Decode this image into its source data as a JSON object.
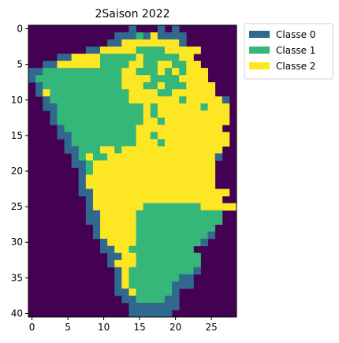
{
  "chart_data": {
    "type": "heatmap",
    "title": "2Saison 2022",
    "xlabel": "",
    "ylabel": "",
    "xlim": [
      -0.5,
      28.5
    ],
    "ylim": [
      40.5,
      -0.5
    ],
    "x_ticks": [
      0,
      5,
      10,
      15,
      20,
      25
    ],
    "y_ticks": [
      0,
      5,
      10,
      15,
      20,
      25,
      30,
      35,
      40
    ],
    "x_tick_labels": [
      "0",
      "5",
      "10",
      "15",
      "20",
      "25"
    ],
    "y_tick_labels": [
      "0",
      "5",
      "10",
      "15",
      "20",
      "25",
      "30",
      "35",
      "40"
    ],
    "grid": false,
    "legend_position": "outside-top-right",
    "colors": {
      "background": "#440154",
      "0": "#31688e",
      "1": "#35b779",
      "2": "#fde725"
    },
    "legend": [
      {
        "label": "Classe 0",
        "class": "0"
      },
      {
        "label": "Classe 1",
        "class": "1"
      },
      {
        "label": "Classe 2",
        "class": "2"
      }
    ],
    "rows": [
      "..............0...0.0........",
      "............0001020000.......",
      "...........00222222220.......",
      "........0022222111122222.....",
      "....0022221111121111122......",
      "..0022222211112211221122.....",
      "0011111111111221112121222....",
      "0111111111111222211112222....",
      ".0111111111112221121112222...",
      ".0211111111111222211222222...",
      "..01111111111122222221222220.",
      "..00111111111111212222221222.",
      "...0111111111111212222222222.",
      "...0111111111111221222222222.",
      "....01111111111222222222222..",
      "....001111111112212222222222.",
      ".....01111111112221222222222.",
      ".....0011122122222222222222..",
      "......012112222222222222220..",
      "......00122222222222222222..",
      ".......0122222222222222222..",
      ".......0222222222222222222..",
      ".......0222222222222222222..",
      ".......002222222222222222222.",
      "........0222222222222222222..",
      "........022222221111111122222",
      "........0022222111111111111..",
      "........0022222111111111111..",
      ".........02222211111111111...",
      ".........02222211111111110...",
      "..........022221111111110....",
      "..........0022111111111......",
      "...........0022111111111.....",
      "...........0222111111111.....",
      "............021111111110.....",
      "............02111111100......",
      "............02111111000......",
      "............002111110........",
      ".............00111100........",
      "..............0000000........",
      "..............000000........."
    ]
  }
}
